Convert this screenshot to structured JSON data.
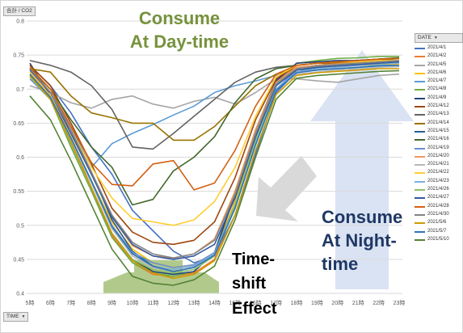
{
  "chart_data": {
    "type": "line",
    "y_title": "合計 / CO2",
    "x_filter_label": "TIME",
    "legend_title": "DATE",
    "categories": [
      "5時",
      "6時",
      "7時",
      "8時",
      "9時",
      "10時",
      "11時",
      "12時",
      "13時",
      "14時",
      "15時",
      "16時",
      "17時",
      "18時",
      "19時",
      "20時",
      "21時",
      "22時",
      "23時"
    ],
    "y_ticks": [
      "0.8",
      "0.75",
      "0.7",
      "0.65",
      "0.6",
      "0.55",
      "0.5",
      "0.45",
      "0.4"
    ],
    "ylim": [
      0.4,
      0.8
    ],
    "grid": true,
    "legend_position": "right",
    "series": [
      {
        "name": "2021/4/1",
        "color": "#4472c4",
        "values": [
          0.735,
          0.705,
          0.665,
          0.615,
          0.575,
          0.522,
          0.492,
          0.462,
          0.445,
          0.455,
          0.515,
          0.605,
          0.695,
          0.725,
          0.732,
          0.735,
          0.738,
          0.74,
          0.742
        ]
      },
      {
        "name": "2021/4/2",
        "color": "#ed7d31",
        "values": [
          0.73,
          0.69,
          0.625,
          0.555,
          0.485,
          0.445,
          0.428,
          0.425,
          0.43,
          0.45,
          0.53,
          0.625,
          0.71,
          0.735,
          0.738,
          0.74,
          0.742,
          0.744,
          0.745
        ]
      },
      {
        "name": "2021/4/5",
        "color": "#a5a5a5",
        "values": [
          0.705,
          0.695,
          0.68,
          0.672,
          0.685,
          0.69,
          0.678,
          0.672,
          0.682,
          0.688,
          0.678,
          0.695,
          0.715,
          0.715,
          0.712,
          0.71,
          0.715,
          0.72,
          0.722
        ]
      },
      {
        "name": "2021/4/6",
        "color": "#ffc000",
        "values": [
          0.725,
          0.69,
          0.63,
          0.565,
          0.505,
          0.465,
          0.445,
          0.438,
          0.442,
          0.46,
          0.535,
          0.625,
          0.7,
          0.725,
          0.73,
          0.732,
          0.735,
          0.736,
          0.737
        ]
      },
      {
        "name": "2021/4/7",
        "color": "#5b9bd5",
        "values": [
          0.73,
          0.695,
          0.645,
          0.585,
          0.62,
          0.635,
          0.648,
          0.662,
          0.675,
          0.695,
          0.705,
          0.712,
          0.72,
          0.725,
          0.728,
          0.73,
          0.732,
          0.735,
          0.735
        ]
      },
      {
        "name": "2021/4/8",
        "color": "#70ad47",
        "values": [
          0.72,
          0.685,
          0.615,
          0.55,
          0.482,
          0.445,
          0.43,
          0.425,
          0.432,
          0.46,
          0.55,
          0.64,
          0.712,
          0.738,
          0.742,
          0.745,
          0.746,
          0.748,
          0.748
        ]
      },
      {
        "name": "2021/4/9",
        "color": "#264478",
        "values": [
          0.738,
          0.69,
          0.62,
          0.555,
          0.488,
          0.45,
          0.432,
          0.428,
          0.432,
          0.46,
          0.545,
          0.64,
          0.712,
          0.738,
          0.74,
          0.742,
          0.742,
          0.744,
          0.745
        ]
      },
      {
        "name": "2021/4/12",
        "color": "#9e480e",
        "values": [
          0.735,
          0.705,
          0.65,
          0.59,
          0.525,
          0.49,
          0.475,
          0.472,
          0.478,
          0.505,
          0.57,
          0.655,
          0.715,
          0.735,
          0.738,
          0.738,
          0.74,
          0.74,
          0.742
        ]
      },
      {
        "name": "2021/4/13",
        "color": "#636363",
        "values": [
          0.742,
          0.735,
          0.725,
          0.705,
          0.67,
          0.615,
          0.612,
          0.635,
          0.66,
          0.685,
          0.71,
          0.725,
          0.732,
          0.735,
          0.738,
          0.74,
          0.742,
          0.744,
          0.746
        ]
      },
      {
        "name": "2021/4/14",
        "color": "#997300",
        "values": [
          0.73,
          0.725,
          0.69,
          0.665,
          0.658,
          0.65,
          0.65,
          0.625,
          0.625,
          0.645,
          0.675,
          0.705,
          0.722,
          0.73,
          0.735,
          0.738,
          0.74,
          0.742,
          0.745
        ]
      },
      {
        "name": "2021/4/15",
        "color": "#255e91",
        "values": [
          0.73,
          0.695,
          0.64,
          0.578,
          0.508,
          0.462,
          0.44,
          0.432,
          0.438,
          0.458,
          0.525,
          0.625,
          0.705,
          0.73,
          0.735,
          0.736,
          0.738,
          0.74,
          0.742
        ]
      },
      {
        "name": "2021/4/16",
        "color": "#43682b",
        "values": [
          0.73,
          0.7,
          0.655,
          0.615,
          0.585,
          0.53,
          0.538,
          0.58,
          0.6,
          0.63,
          0.68,
          0.715,
          0.73,
          0.735,
          0.738,
          0.74,
          0.742,
          0.744,
          0.746
        ]
      },
      {
        "name": "2021/4/19",
        "color": "#698ed0",
        "values": [
          0.715,
          0.685,
          0.625,
          0.565,
          0.5,
          0.46,
          0.445,
          0.438,
          0.442,
          0.46,
          0.53,
          0.62,
          0.7,
          0.728,
          0.732,
          0.735,
          0.738,
          0.74,
          0.742
        ]
      },
      {
        "name": "2021/4/20",
        "color": "#f1975a",
        "values": [
          0.728,
          0.69,
          0.635,
          0.575,
          0.512,
          0.47,
          0.455,
          0.452,
          0.458,
          0.48,
          0.55,
          0.64,
          0.71,
          0.732,
          0.735,
          0.737,
          0.738,
          0.74,
          0.742
        ]
      },
      {
        "name": "2021/4/21",
        "color": "#b7b7b7",
        "values": [
          0.718,
          0.685,
          0.625,
          0.562,
          0.495,
          0.455,
          0.438,
          0.432,
          0.438,
          0.458,
          0.528,
          0.62,
          0.7,
          0.722,
          0.725,
          0.728,
          0.73,
          0.732,
          0.733
        ]
      },
      {
        "name": "2021/4/22",
        "color": "#ffcd33",
        "values": [
          0.725,
          0.69,
          0.64,
          0.585,
          0.54,
          0.51,
          0.505,
          0.5,
          0.508,
          0.535,
          0.585,
          0.66,
          0.718,
          0.735,
          0.738,
          0.74,
          0.74,
          0.742,
          0.742
        ]
      },
      {
        "name": "2021/4/23",
        "color": "#7cafdd",
        "values": [
          0.72,
          0.688,
          0.628,
          0.565,
          0.498,
          0.458,
          0.44,
          0.435,
          0.44,
          0.458,
          0.528,
          0.62,
          0.7,
          0.725,
          0.73,
          0.732,
          0.735,
          0.737,
          0.738
        ]
      },
      {
        "name": "2021/4/26",
        "color": "#8cc168",
        "values": [
          0.718,
          0.685,
          0.62,
          0.555,
          0.488,
          0.45,
          0.435,
          0.43,
          0.435,
          0.455,
          0.53,
          0.625,
          0.705,
          0.73,
          0.734,
          0.736,
          0.738,
          0.74,
          0.74
        ]
      },
      {
        "name": "2021/4/27",
        "color": "#335aa1",
        "values": [
          0.728,
          0.695,
          0.635,
          0.575,
          0.512,
          0.472,
          0.455,
          0.45,
          0.455,
          0.472,
          0.54,
          0.63,
          0.705,
          0.728,
          0.732,
          0.734,
          0.736,
          0.738,
          0.74
        ]
      },
      {
        "name": "2021/4/28",
        "color": "#d26012",
        "values": [
          0.732,
          0.7,
          0.645,
          0.592,
          0.56,
          0.558,
          0.59,
          0.595,
          0.552,
          0.562,
          0.61,
          0.675,
          0.722,
          0.735,
          0.738,
          0.74,
          0.742,
          0.744,
          0.745
        ]
      },
      {
        "name": "2021/4/30",
        "color": "#848484",
        "values": [
          0.73,
          0.695,
          0.64,
          0.578,
          0.515,
          0.475,
          0.458,
          0.452,
          0.458,
          0.478,
          0.545,
          0.635,
          0.708,
          0.73,
          0.734,
          0.736,
          0.738,
          0.74,
          0.742
        ]
      },
      {
        "name": "2021/5/6",
        "color": "#cc9a00",
        "values": [
          0.72,
          0.685,
          0.622,
          0.555,
          0.488,
          0.448,
          0.43,
          0.422,
          0.428,
          0.448,
          0.515,
          0.61,
          0.692,
          0.72,
          0.724,
          0.726,
          0.728,
          0.73,
          0.73
        ]
      },
      {
        "name": "2021/5/7",
        "color": "#2e75b6",
        "values": [
          0.722,
          0.688,
          0.628,
          0.565,
          0.498,
          0.458,
          0.44,
          0.432,
          0.438,
          0.456,
          0.525,
          0.618,
          0.698,
          0.724,
          0.728,
          0.73,
          0.732,
          0.734,
          0.735
        ]
      },
      {
        "name": "2021/5/10",
        "color": "#548235",
        "values": [
          0.69,
          0.655,
          0.595,
          0.53,
          0.465,
          0.425,
          0.415,
          0.412,
          0.42,
          0.44,
          0.508,
          0.6,
          0.685,
          0.716,
          0.72,
          0.722,
          0.724,
          0.726,
          0.727
        ]
      }
    ],
    "annotations": [
      {
        "lines": [
          "Consume",
          "At Day-time"
        ]
      },
      {
        "lines": [
          "Consume",
          "At Night-",
          "time"
        ]
      },
      {
        "lines": [
          "Time-",
          "shift",
          "Effect"
        ]
      }
    ]
  }
}
